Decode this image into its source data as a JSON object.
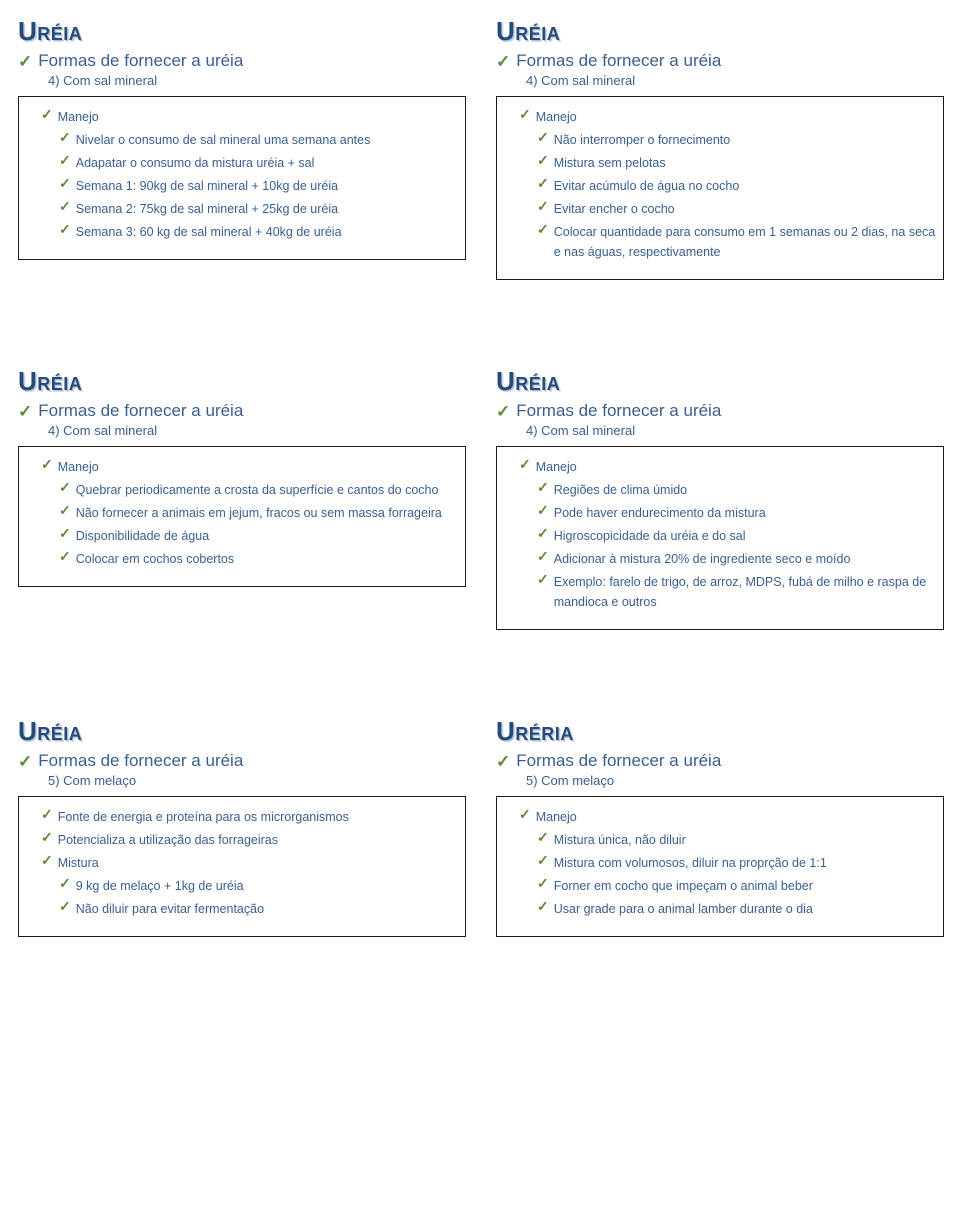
{
  "slides": [
    {
      "brand": "Uréia",
      "heading": "Formas de fornecer a uréia",
      "subhead": "4) Com sal mineral",
      "lines": [
        {
          "indent": 1,
          "text": "Manejo"
        },
        {
          "indent": 2,
          "text": "Nivelar o consumo de sal mineral uma semana antes"
        },
        {
          "indent": 2,
          "text": "Adapatar o consumo da mistura uréia + sal"
        },
        {
          "indent": 2,
          "text": "Semana 1: 90kg de sal mineral + 10kg de uréia"
        },
        {
          "indent": 2,
          "text": "Semana 2: 75kg de sal mineral + 25kg de uréia"
        },
        {
          "indent": 2,
          "text": "Semana 3: 60 kg de sal mineral + 40kg de uréia"
        }
      ]
    },
    {
      "brand": "Uréia",
      "heading": "Formas de fornecer a uréia",
      "subhead": "4) Com sal mineral",
      "lines": [
        {
          "indent": 1,
          "text": "Manejo"
        },
        {
          "indent": 2,
          "text": "Não interromper o fornecimento"
        },
        {
          "indent": 2,
          "text": "Mistura sem pelotas"
        },
        {
          "indent": 2,
          "text": "Evitar acúmulo de água no cocho"
        },
        {
          "indent": 2,
          "text": "Evitar encher o cocho"
        },
        {
          "indent": 2,
          "text": "Colocar quantidade para consumo em 1 semanas ou 2 dias, na seca e nas águas, respectivamente"
        }
      ]
    },
    {
      "brand": "Uréia",
      "heading": "Formas de fornecer a uréia",
      "subhead": "4) Com sal mineral",
      "lines": [
        {
          "indent": 1,
          "text": "Manejo"
        },
        {
          "indent": 2,
          "text": "Quebrar periodicamente a crosta da superfície e cantos do cocho",
          "justify": true
        },
        {
          "indent": 2,
          "text": "Não fornecer a animais em jejum, fracos ou sem massa forrageira",
          "justify": true
        },
        {
          "indent": 2,
          "text": "Disponibilidade de água"
        },
        {
          "indent": 2,
          "text": "Colocar em cochos cobertos"
        }
      ]
    },
    {
      "brand": "Uréia",
      "heading": "Formas de fornecer a uréia",
      "subhead": "4) Com sal mineral",
      "lines": [
        {
          "indent": 1,
          "text": "Manejo"
        },
        {
          "indent": 2,
          "text": "Regiões de clima úmido"
        },
        {
          "indent": 2,
          "text": "Pode haver endurecimento da mistura",
          "noCheck": false
        },
        {
          "indent": 2,
          "text": "Higroscopicidade da uréia e do sal"
        },
        {
          "indent": 2,
          "text": "Adicionar à mistura 20% de ingrediente seco e moído",
          "justify": true
        },
        {
          "indent": 2,
          "text": "Exemplo: farelo de trigo, de arroz, MDPS, fubá de milho e raspa de mandioca e outros"
        }
      ]
    },
    {
      "brand": "Uréia",
      "heading": "Formas de fornecer a uréia",
      "subhead": "5) Com melaço",
      "lines": [
        {
          "indent": 1,
          "text": "Fonte de energia e proteína para os microrganismos"
        },
        {
          "indent": 1,
          "text": "Potencializa a utilização das forrageiras"
        },
        {
          "indent": 1,
          "text": "Mistura"
        },
        {
          "indent": 2,
          "text": "9 kg de melaço + 1kg de uréia"
        },
        {
          "indent": 2,
          "text": "Não diluir para evitar fermentação"
        }
      ]
    },
    {
      "brand": "Uréria",
      "heading": "Formas de fornecer a uréia",
      "subhead": "5) Com melaço",
      "lines": [
        {
          "indent": 1,
          "text": "Manejo"
        },
        {
          "indent": 2,
          "text": "Mistura única, não diluir"
        },
        {
          "indent": 2,
          "text": "Mistura com volumosos, diluir na proprção de 1:1"
        },
        {
          "indent": 2,
          "text": "Forner em cocho que impeçam o animal beber"
        },
        {
          "indent": 2,
          "text": "Usar grade para o animal lamber durante o dia"
        }
      ]
    }
  ],
  "colors": {
    "heading": "#264a7a",
    "text": "#3a5f8f",
    "check": "#5a8a3a",
    "border": "#1a1a1a",
    "bg": "#ffffff"
  }
}
